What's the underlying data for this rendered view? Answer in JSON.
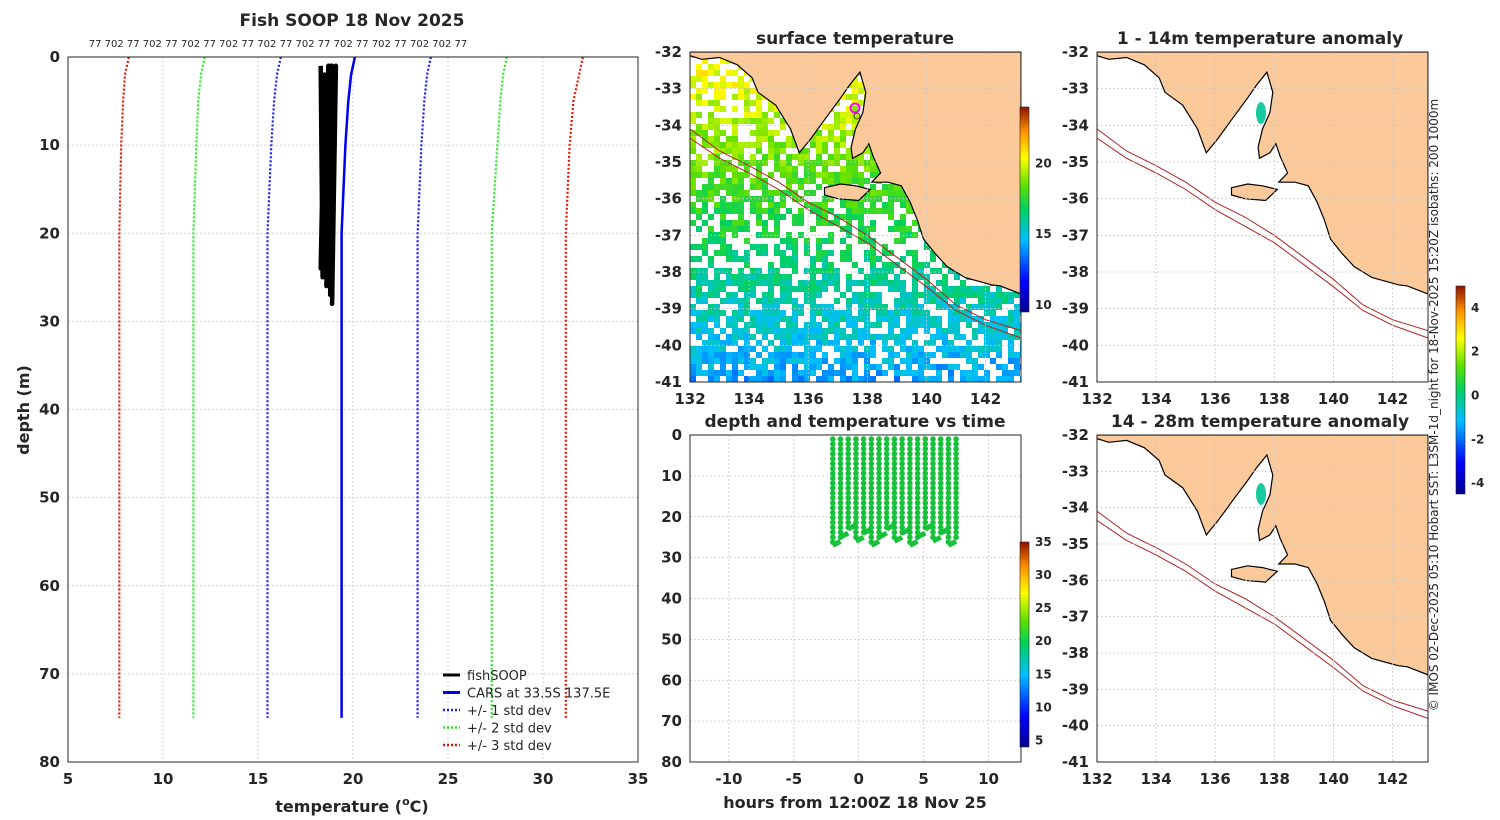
{
  "colors": {
    "land": "#fbc99a",
    "obs": "#000000",
    "cars": "#0000ee",
    "sd1": "#1a1aff",
    "sd2": "#22ee22",
    "sd3": "#ee1100",
    "dots": "#17c23a",
    "isobath": "#b22222"
  },
  "chart_data": [
    {
      "id": "profile",
      "type": "line",
      "title": "Fish SOOP 18 Nov 2025",
      "xlabel": "temperature (oC)",
      "xlabel_main": "temperature (",
      "xlabel_sup": "o",
      "xlabel_unit": "C)",
      "ylabel": "depth (m)",
      "xlim": [
        5,
        35
      ],
      "ylim": [
        0,
        80
      ],
      "y_reversed": true,
      "xticks": [
        5,
        10,
        15,
        20,
        25,
        30,
        35
      ],
      "yticks": [
        0,
        10,
        20,
        30,
        40,
        50,
        60,
        70,
        80
      ],
      "top_annotation": "77 702 77 702 77 702 77 702 77 702 77 702 77 702 77 702 77 702 702 77",
      "legend": [
        {
          "label": "fishSOOP",
          "style": "solid",
          "color": "#000000"
        },
        {
          "label": "CARS at 33.5S 137.5E",
          "style": "solid",
          "color": "#0000ee"
        },
        {
          "label": "+/- 1 std dev",
          "style": "dotted",
          "color": "#1a1aff"
        },
        {
          "label": "+/- 2 std dev",
          "style": "dotted",
          "color": "#22ee22"
        },
        {
          "label": "+/- 3 std dev",
          "style": "dotted",
          "color": "#ee1100"
        }
      ],
      "series": [
        {
          "name": "CARS",
          "depth": [
            0,
            2,
            5,
            10,
            20,
            40,
            60,
            75
          ],
          "temp": [
            20.1,
            19.9,
            19.75,
            19.6,
            19.4,
            19.4,
            19.4,
            19.4
          ]
        },
        {
          "name": "+1 sd",
          "depth": [
            0,
            2,
            5,
            10,
            20,
            40,
            60,
            75
          ],
          "temp": [
            24.1,
            23.9,
            23.75,
            23.6,
            23.4,
            23.4,
            23.4,
            23.4
          ]
        },
        {
          "name": "-1 sd",
          "depth": [
            0,
            2,
            5,
            10,
            20,
            40,
            60,
            75
          ],
          "temp": [
            16.2,
            16.0,
            15.85,
            15.7,
            15.5,
            15.5,
            15.5,
            15.5
          ]
        },
        {
          "name": "+2 sd",
          "depth": [
            0,
            2,
            5,
            10,
            20,
            40,
            60,
            75
          ],
          "temp": [
            28.1,
            27.9,
            27.75,
            27.6,
            27.3,
            27.3,
            27.3,
            27.3
          ]
        },
        {
          "name": "-2 sd",
          "depth": [
            0,
            2,
            5,
            10,
            20,
            40,
            60,
            75
          ],
          "temp": [
            12.2,
            12.0,
            11.85,
            11.75,
            11.6,
            11.6,
            11.6,
            11.6
          ]
        },
        {
          "name": "+3 sd",
          "depth": [
            0,
            2,
            5,
            10,
            20,
            40,
            60,
            75
          ],
          "temp": [
            32.1,
            31.9,
            31.6,
            31.4,
            31.2,
            31.2,
            31.2,
            31.2
          ]
        },
        {
          "name": "-3 sd",
          "depth": [
            0,
            2,
            5,
            10,
            20,
            40,
            60,
            75
          ],
          "temp": [
            8.2,
            8.0,
            7.9,
            7.8,
            7.7,
            7.7,
            7.7,
            7.7
          ]
        },
        {
          "name": "fishSOOP",
          "depth": [
            1,
            25,
            2,
            24,
            1,
            26,
            2,
            25,
            1,
            27,
            2,
            28,
            1,
            25,
            2,
            24,
            1,
            26
          ],
          "temp": [
            18.3,
            18.4,
            18.5,
            18.6,
            18.7,
            18.6,
            18.8,
            18.7,
            18.9,
            18.8,
            19.0,
            18.9,
            19.1,
            18.7,
            18.5,
            18.3,
            18.8,
            18.6
          ]
        }
      ]
    },
    {
      "id": "sst",
      "type": "heatmap",
      "title": "surface temperature",
      "xlim": [
        132,
        143.2
      ],
      "ylim": [
        -41,
        -32
      ],
      "xticks": [
        132,
        134,
        136,
        138,
        140,
        142
      ],
      "yticks": [
        -32,
        -33,
        -34,
        -35,
        -36,
        -37,
        -38,
        -39,
        -40,
        -41
      ],
      "colorbar_ticks": [
        10,
        15,
        20
      ],
      "colorbar_range": [
        9.5,
        24
      ]
    },
    {
      "id": "depth_time",
      "type": "scatter",
      "title": "depth and temperature vs time",
      "xlabel": "hours from 12:00Z 18 Nov 25",
      "xlim": [
        -13,
        12.5
      ],
      "ylim": [
        0,
        80
      ],
      "y_reversed": true,
      "xticks": [
        -10,
        -5,
        0,
        5,
        10
      ],
      "yticks": [
        0,
        10,
        20,
        30,
        40,
        50,
        60,
        70,
        80
      ],
      "colorbar_ticks": [
        5,
        10,
        15,
        20,
        25,
        30,
        35
      ],
      "colorbar_range": [
        4,
        35
      ],
      "series": [
        {
          "name": "casts",
          "hours_start": -2,
          "hours_end": 7.5,
          "casts": 17,
          "min_depth": 1,
          "max_depth": 27,
          "temp": 19
        }
      ]
    },
    {
      "id": "anom_shallow",
      "type": "heatmap",
      "title": "1 - 14m temperature anomaly",
      "xlim": [
        132,
        143.2
      ],
      "ylim": [
        -41,
        -32
      ],
      "xticks": [
        132,
        134,
        136,
        138,
        140,
        142
      ],
      "yticks": [
        -32,
        -33,
        -34,
        -35,
        -36,
        -37,
        -38,
        -39,
        -40,
        -41
      ],
      "anomaly": -1.5
    },
    {
      "id": "anom_deep",
      "type": "heatmap",
      "title": "14 - 28m temperature anomaly",
      "xlim": [
        132,
        143.2
      ],
      "ylim": [
        -41,
        -32
      ],
      "xticks": [
        132,
        134,
        136,
        138,
        140,
        142
      ],
      "yticks": [
        -32,
        -33,
        -34,
        -35,
        -36,
        -37,
        -38,
        -39,
        -40,
        -41
      ],
      "anomaly": -1.5
    },
    {
      "id": "anom_colorbar",
      "type": "colorbar",
      "ticks": [
        -4,
        -2,
        0,
        2,
        4
      ],
      "range": [
        -4.5,
        5
      ]
    }
  ],
  "credit": "© IMOS 02-Dec-2025 05:10 Hobart SST: L3SM-1d_night for 18-Nov-2025 15:20Z isobaths: 200  1000m"
}
